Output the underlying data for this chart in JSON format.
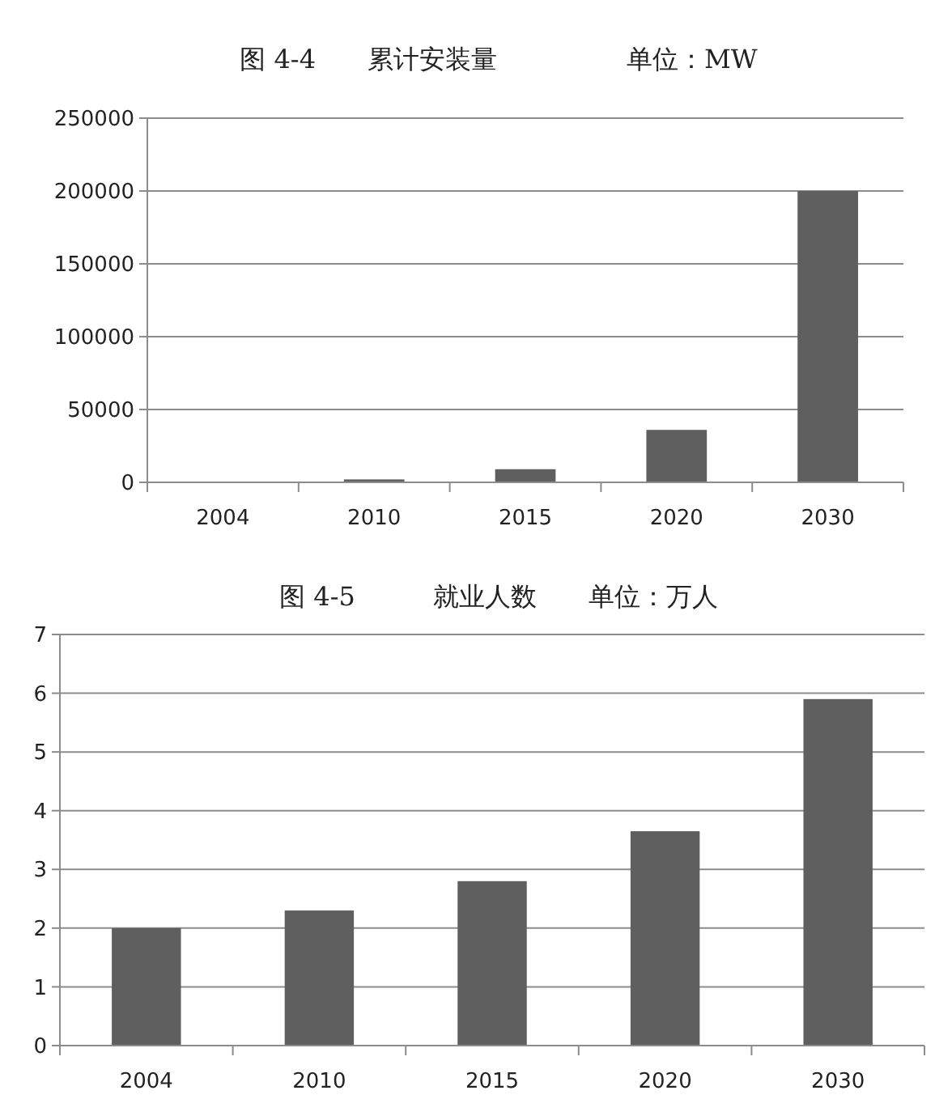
{
  "chart_data": [
    {
      "type": "bar",
      "title": "图 4-4　　累计安装量　　　　　单位：MW",
      "categories": [
        "2004",
        "2010",
        "2015",
        "2020",
        "2030"
      ],
      "values": [
        null,
        2000,
        9000,
        36000,
        200000
      ],
      "color": "#5f5f5f",
      "ylim": [
        0,
        250000
      ],
      "yticks": [
        0,
        50000,
        100000,
        150000,
        200000,
        250000
      ],
      "grid": "y"
    },
    {
      "type": "bar",
      "title": "图 4-5　　　就业人数　　单位：万人",
      "categories": [
        "2004",
        "2010",
        "2015",
        "2020",
        "2030"
      ],
      "values": [
        2,
        2.3,
        2.8,
        3.65,
        5.9
      ],
      "color": "#5f5f5f",
      "ylim": [
        0,
        7
      ],
      "yticks": [
        0,
        1,
        2,
        3,
        4,
        5,
        6,
        7
      ],
      "grid": "y"
    }
  ]
}
